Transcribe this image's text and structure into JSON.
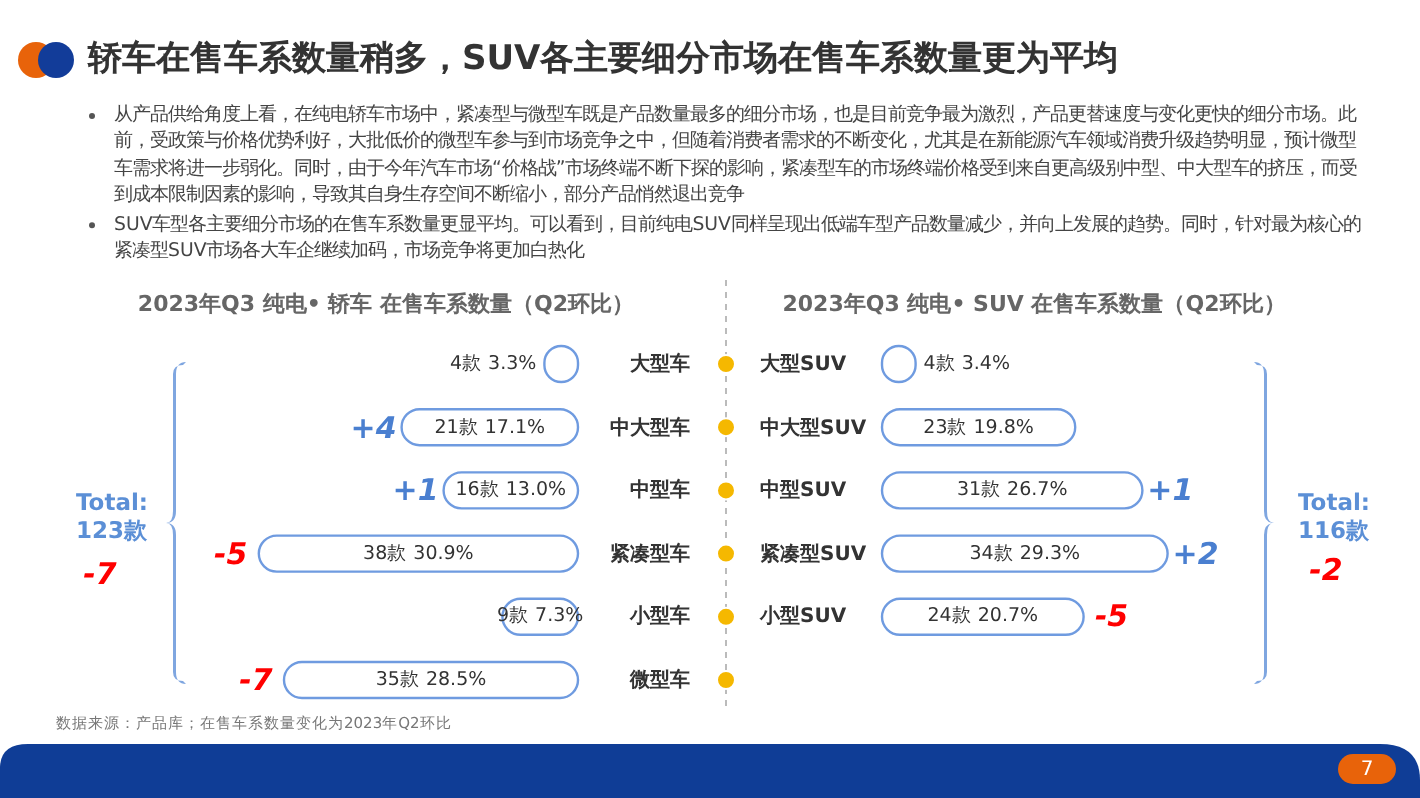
{
  "chart_data": [
    {
      "type": "other",
      "title": "轿车在售车系数量稍多，SUV各主要细分市场在售车系数量更为平均",
      "annotations": [
        "从产品供给角度上看，在纯电轿车市场中，紧凑型与微型车既是产品数量最多的细分市场，也是目前竞争最为激烈，产品更替速度与变化更快的细分市场。此前，受政策与价格优势利好，大批低价的微型车参与到市场竞争之中，但随着消费者需求的不断变化，尤其是在新能源汽车领域消费升级趋势明显，预计微型车需求将进一步弱化。同时，由于今年汽车市场“价格战”市场终端不断下探的影响，紧凑型车的市场终端价格受到来自更高级别中型、中大型车的挤压，而受到成本限制因素的影响，导致其自身生存空间不断缩小，部分产品悄然退出竞争",
        "SUV车型各主要细分市场的在售车系数量更显平均。可以看到，目前纯电SUV同样呈现出低端车型产品数量减少，并向上发展的趋势。同时，针对最为核心的紧凑型SUV市场各大车企继续加码，市场竞争将更加白热化",
        "Total: 123款",
        "-7",
        "Total: 116款",
        "-2",
        "数据来源：产品库；在售车系数量变化为2023年Q2环比",
        "7"
      ]
    },
    {
      "type": "bar",
      "orientation": "horizontal",
      "title": "2023年Q3  纯电• 轿车 在售车系数量（Q2环比）",
      "categories": [
        "大型车",
        "中大型车",
        "中型车",
        "紧凑型车",
        "小型车",
        "微型车"
      ],
      "values": [
        4,
        21,
        16,
        38,
        9,
        35
      ],
      "value_labels": [
        "4款 3.3%",
        "21款 17.1%",
        "16款 13.0%",
        "38款 30.9%",
        "9款 7.3%",
        "35款 28.5%"
      ],
      "color": "#6f9be0",
      "annotations": [
        {
          "text": "+4",
          "x": 21,
          "y": "中大型车"
        },
        {
          "text": "+1",
          "x": 16,
          "y": "中型车"
        },
        {
          "text": "-5",
          "x": 38,
          "y": "紧凑型车"
        },
        {
          "text": "-7",
          "x": 35,
          "y": "微型车"
        }
      ]
    },
    {
      "type": "bar",
      "orientation": "horizontal",
      "title": "2023年Q3  纯电• SUV 在售车系数量（Q2环比）",
      "categories": [
        "大型SUV",
        "中大型SUV",
        "中型SUV",
        "紧凑型SUV",
        "小型SUV"
      ],
      "values": [
        4,
        23,
        31,
        34,
        24
      ],
      "value_labels": [
        "4款 3.4%",
        "23款 19.8%",
        "31款 26.7%",
        "34款 29.3%",
        "24款 20.7%"
      ],
      "color": "#6f9be0",
      "annotations": [
        {
          "text": "+1",
          "x": 31,
          "y": "中型SUV"
        },
        {
          "text": "+2",
          "x": 34,
          "y": "紧凑型SUV"
        },
        {
          "text": "-5",
          "x": 24,
          "y": "小型SUV"
        }
      ]
    }
  ]
}
